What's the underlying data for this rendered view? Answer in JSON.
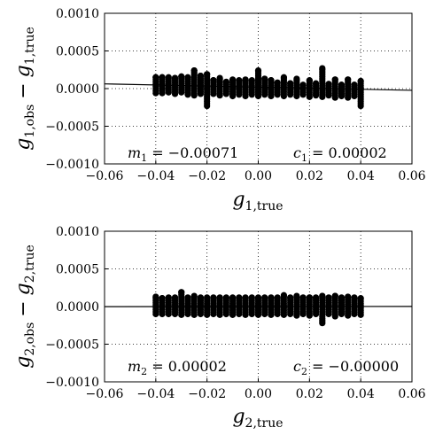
{
  "chart_data": [
    {
      "type": "scatter",
      "xlabel": {
        "symbol": "g",
        "subscript": "1,true"
      },
      "ylabel": {
        "symbol1": "g",
        "sub1": "1,obs",
        "op": "−",
        "symbol2": "g",
        "sub2": "1,true"
      },
      "xlim": [
        -0.06,
        0.06
      ],
      "ylim": [
        -0.001,
        0.001
      ],
      "xticks": [
        -0.06,
        -0.04,
        -0.02,
        0.0,
        0.02,
        0.04,
        0.06
      ],
      "xtick_labels": [
        "−0.06",
        "−0.04",
        "−0.02",
        "0.00",
        "0.02",
        "0.04",
        "0.06"
      ],
      "yticks": [
        -0.001,
        -0.0005,
        0.0,
        0.0005,
        0.001
      ],
      "ytick_labels": [
        "−0.0010",
        "−0.0005",
        "0.0000",
        "0.0005",
        "0.0010"
      ],
      "grid": true,
      "fit_line": {
        "slope": -0.00071,
        "intercept": 2e-05
      },
      "annotations": [
        {
          "symbol": "m",
          "subscript": "1",
          "text": " = −0.00071",
          "position": "bottom-left"
        },
        {
          "symbol": "c",
          "subscript": "1",
          "text": " = 0.00002",
          "position": "bottom-right"
        }
      ],
      "x_groups": [
        -0.04,
        -0.0375,
        -0.035,
        -0.0325,
        -0.03,
        -0.0275,
        -0.025,
        -0.0225,
        -0.02,
        -0.0175,
        -0.015,
        -0.0125,
        -0.01,
        -0.0075,
        -0.005,
        -0.0025,
        0.0,
        0.0025,
        0.005,
        0.0075,
        0.01,
        0.0125,
        0.015,
        0.0175,
        0.02,
        0.0225,
        0.025,
        0.0275,
        0.03,
        0.0325,
        0.035,
        0.0375,
        0.04
      ],
      "spread": {
        "upper": [
          0.00015,
          0.00015,
          0.00015,
          0.00014,
          0.00016,
          0.00015,
          0.00024,
          0.00017,
          0.00019,
          0.00011,
          0.00014,
          9e-05,
          0.00012,
          0.00011,
          0.00012,
          0.00011,
          0.00024,
          0.00013,
          0.00011,
          8e-05,
          0.00015,
          7e-05,
          0.00013,
          5e-05,
          0.00011,
          7e-05,
          0.00027,
          6e-05,
          0.00012,
          5e-05,
          0.00012,
          5e-05,
          0.0001
        ],
        "lower": [
          -6e-05,
          -6e-05,
          -5e-05,
          -7e-05,
          -5e-05,
          -8e-05,
          -9e-05,
          -7e-05,
          -0.00023,
          -7e-05,
          -9e-05,
          -7e-05,
          -0.0001,
          -8e-05,
          -0.0001,
          -8e-05,
          -0.0001,
          -8e-05,
          -0.0001,
          -8e-05,
          -0.0001,
          -8e-05,
          -0.0001,
          -8e-05,
          -0.00011,
          -9e-05,
          -0.00011,
          -9e-05,
          -0.00012,
          -0.0001,
          -0.00012,
          -0.0001,
          -0.00023
        ]
      }
    },
    {
      "type": "scatter",
      "xlabel": {
        "symbol": "g",
        "subscript": "2,true"
      },
      "ylabel": {
        "symbol1": "g",
        "sub1": "2,obs",
        "op": "−",
        "symbol2": "g",
        "sub2": "2,true"
      },
      "xlim": [
        -0.06,
        0.06
      ],
      "ylim": [
        -0.001,
        0.001
      ],
      "xticks": [
        -0.06,
        -0.04,
        -0.02,
        0.0,
        0.02,
        0.04,
        0.06
      ],
      "xtick_labels": [
        "−0.06",
        "−0.04",
        "−0.02",
        "0.00",
        "0.02",
        "0.04",
        "0.06"
      ],
      "yticks": [
        -0.001,
        -0.0005,
        0.0,
        0.0005,
        0.001
      ],
      "ytick_labels": [
        "−0.0010",
        "−0.0005",
        "0.0000",
        "0.0005",
        "0.0010"
      ],
      "grid": true,
      "fit_line": {
        "slope": 2e-05,
        "intercept": -0.0
      },
      "annotations": [
        {
          "symbol": "m",
          "subscript": "2",
          "text": " = 0.00002",
          "position": "bottom-left"
        },
        {
          "symbol": "c",
          "subscript": "2",
          "text": " = −0.00000",
          "position": "bottom-right"
        }
      ],
      "x_groups": [
        -0.04,
        -0.0375,
        -0.035,
        -0.0325,
        -0.03,
        -0.0275,
        -0.025,
        -0.0225,
        -0.02,
        -0.0175,
        -0.015,
        -0.0125,
        -0.01,
        -0.0075,
        -0.005,
        -0.0025,
        0.0,
        0.0025,
        0.005,
        0.0075,
        0.01,
        0.0125,
        0.015,
        0.0175,
        0.02,
        0.0225,
        0.025,
        0.0275,
        0.03,
        0.0325,
        0.035,
        0.0375,
        0.04
      ],
      "spread": {
        "upper": [
          0.00013,
          0.00011,
          0.00012,
          0.00012,
          0.00019,
          0.00012,
          0.00014,
          0.00012,
          0.00012,
          0.00012,
          0.00012,
          0.00012,
          0.00012,
          0.00012,
          0.00012,
          0.00012,
          0.00012,
          0.00012,
          0.00012,
          0.00012,
          0.00015,
          0.00012,
          0.00014,
          0.00012,
          0.00012,
          0.00012,
          0.00014,
          0.00012,
          0.00014,
          0.00012,
          0.00013,
          0.00012,
          0.00011
        ],
        "lower": [
          -0.0001,
          -0.0001,
          -0.0001,
          -0.0001,
          -0.00011,
          -0.0001,
          -0.00011,
          -0.0001,
          -0.00011,
          -0.0001,
          -0.00011,
          -0.0001,
          -0.00011,
          -0.0001,
          -0.00011,
          -0.0001,
          -0.00011,
          -0.0001,
          -0.00011,
          -0.0001,
          -0.00011,
          -0.0001,
          -0.00012,
          -0.0001,
          -0.00012,
          -0.0001,
          -0.00022,
          -0.0001,
          -0.00013,
          -0.0001,
          -0.00012,
          -0.0001,
          -0.00011
        ]
      }
    }
  ]
}
